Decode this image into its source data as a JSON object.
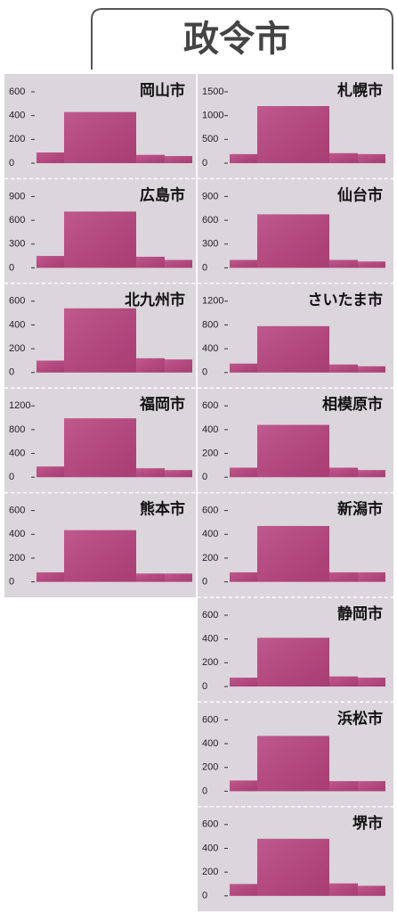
{
  "header": {
    "title": "政令市"
  },
  "chart_data": [
    {
      "type": "bar",
      "title": "岡山市",
      "values": [
        90,
        430,
        70,
        60
      ],
      "ylim": [
        0,
        600
      ],
      "yticks": [
        0,
        200,
        400,
        600
      ],
      "color": "#b8437f"
    },
    {
      "type": "bar",
      "title": "広島市",
      "values": [
        150,
        710,
        140,
        100
      ],
      "ylim": [
        0,
        900
      ],
      "yticks": [
        0,
        300,
        600,
        900
      ],
      "color": "#b8437f"
    },
    {
      "type": "bar",
      "title": "北九州市",
      "values": [
        100,
        540,
        120,
        110
      ],
      "ylim": [
        0,
        600
      ],
      "yticks": [
        0,
        200,
        400,
        600
      ],
      "color": "#b8437f"
    },
    {
      "type": "bar",
      "title": "福岡市",
      "values": [
        180,
        990,
        150,
        120
      ],
      "ylim": [
        0,
        1200
      ],
      "yticks": [
        0,
        400,
        800,
        1200
      ],
      "color": "#b8437f"
    },
    {
      "type": "bar",
      "title": "熊本市",
      "values": [
        80,
        435,
        70,
        70
      ],
      "ylim": [
        0,
        600
      ],
      "yticks": [
        0,
        200,
        400,
        600
      ],
      "color": "#b8437f"
    },
    {
      "type": "bar",
      "title": "札幌市",
      "values": [
        190,
        1200,
        210,
        190
      ],
      "ylim": [
        0,
        1500
      ],
      "yticks": [
        0,
        500,
        1000,
        1500
      ],
      "color": "#b8437f"
    },
    {
      "type": "bar",
      "title": "仙台市",
      "values": [
        100,
        675,
        100,
        80
      ],
      "ylim": [
        0,
        900
      ],
      "yticks": [
        0,
        300,
        600,
        900
      ],
      "color": "#b8437f"
    },
    {
      "type": "bar",
      "title": "さいたま市",
      "values": [
        150,
        780,
        135,
        105
      ],
      "ylim": [
        0,
        1200
      ],
      "yticks": [
        0,
        400,
        800,
        1200
      ],
      "color": "#b8437f"
    },
    {
      "type": "bar",
      "title": "相模原市",
      "values": [
        80,
        440,
        80,
        60
      ],
      "ylim": [
        0,
        600
      ],
      "yticks": [
        0,
        200,
        400,
        600
      ],
      "color": "#b8437f"
    },
    {
      "type": "bar",
      "title": "新潟市",
      "values": [
        80,
        470,
        80,
        80
      ],
      "ylim": [
        0,
        600
      ],
      "yticks": [
        0,
        200,
        400,
        600
      ],
      "color": "#b8437f"
    },
    {
      "type": "bar",
      "title": "静岡市",
      "values": [
        75,
        410,
        85,
        75
      ],
      "ylim": [
        0,
        600
      ],
      "yticks": [
        0,
        200,
        400,
        600
      ],
      "color": "#b8437f"
    },
    {
      "type": "bar",
      "title": "浜松市",
      "values": [
        90,
        465,
        85,
        85
      ],
      "ylim": [
        0,
        600
      ],
      "yticks": [
        0,
        200,
        400,
        600
      ],
      "color": "#b8437f"
    },
    {
      "type": "bar",
      "title": "堺市",
      "values": [
        100,
        480,
        105,
        85
      ],
      "ylim": [
        0,
        600
      ],
      "yticks": [
        0,
        200,
        400,
        600
      ],
      "color": "#b8437f"
    }
  ]
}
